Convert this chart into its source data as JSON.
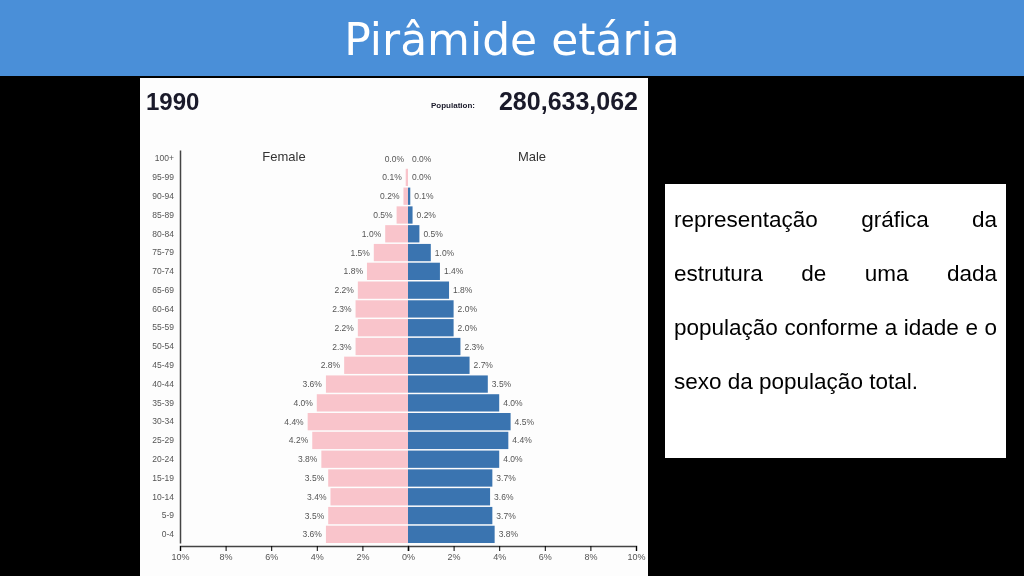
{
  "chart_data": [
    {
      "type": "other",
      "title": "Pirâmide etária",
      "annotations": [
        "1990",
        "Population:",
        "280,633,062",
        "representação gráfica da estrutura de uma dada população conforme a idade e o sexo da população total."
      ]
    },
    {
      "type": "bar",
      "orientation": "horizontal",
      "title": "Female",
      "categories": [
        "100+",
        "95-99",
        "90-94",
        "85-89",
        "80-84",
        "75-79",
        "70-74",
        "65-69",
        "60-64",
        "55-59",
        "50-54",
        "45-49",
        "40-44",
        "35-39",
        "30-34",
        "25-29",
        "20-24",
        "15-19",
        "10-14",
        "5-9",
        "0-4"
      ],
      "series": [
        {
          "color": "#f9c4cb",
          "values": [
            0.0,
            0.1,
            0.2,
            0.5,
            1.0,
            1.5,
            1.8,
            2.2,
            2.3,
            2.2,
            2.3,
            2.8,
            3.6,
            4.0,
            4.4,
            4.2,
            3.8,
            3.5,
            3.4,
            3.5,
            3.6
          ],
          "value_labels": [
            "0.0%",
            "0.1%",
            "0.2%",
            "0.5%",
            "1.0%",
            "1.5%",
            "1.8%",
            "2.2%",
            "2.3%",
            "2.2%",
            "2.3%",
            "2.8%",
            "3.6%",
            "4.0%",
            "4.4%",
            "4.2%",
            "3.8%",
            "3.5%",
            "3.4%",
            "3.5%",
            "3.6%"
          ]
        }
      ],
      "xlim": [
        10,
        0
      ],
      "xticks": [
        {
          "value": 10,
          "label": "10%"
        },
        {
          "value": 8,
          "label": "8%"
        },
        {
          "value": 6,
          "label": "6%"
        },
        {
          "value": 4,
          "label": "4%"
        },
        {
          "value": 2,
          "label": "2%"
        }
      ],
      "grid": false
    },
    {
      "type": "bar",
      "orientation": "horizontal",
      "title": "Male",
      "categories": [
        null,
        null,
        null,
        null,
        null,
        null,
        null,
        null,
        null,
        null,
        null,
        null,
        null,
        null,
        null,
        null,
        null,
        null,
        null,
        null,
        null
      ],
      "series": [
        {
          "color": "#3a74b0",
          "values": [
            0.0,
            0.0,
            0.1,
            0.2,
            0.5,
            1.0,
            1.4,
            1.8,
            2.0,
            2.0,
            2.3,
            2.7,
            3.5,
            4.0,
            4.5,
            4.4,
            4.0,
            3.7,
            3.6,
            3.7,
            3.8
          ],
          "value_labels": [
            "0.0%",
            "0.0%",
            "0.1%",
            "0.2%",
            "0.5%",
            "1.0%",
            "1.4%",
            "1.8%",
            "2.0%",
            "2.0%",
            "2.3%",
            "2.7%",
            "3.5%",
            "4.0%",
            "4.5%",
            "4.4%",
            "4.0%",
            "3.7%",
            "3.6%",
            "3.7%",
            "3.8%"
          ]
        }
      ],
      "xlim": [
        0,
        10
      ],
      "xticks": [
        {
          "value": 0,
          "label": "0%"
        },
        {
          "value": 2,
          "label": "2%"
        },
        {
          "value": 4,
          "label": "4%"
        },
        {
          "value": 6,
          "label": "6%"
        },
        {
          "value": 8,
          "label": "8%"
        },
        {
          "value": 10,
          "label": "10%"
        }
      ],
      "grid": false
    }
  ]
}
